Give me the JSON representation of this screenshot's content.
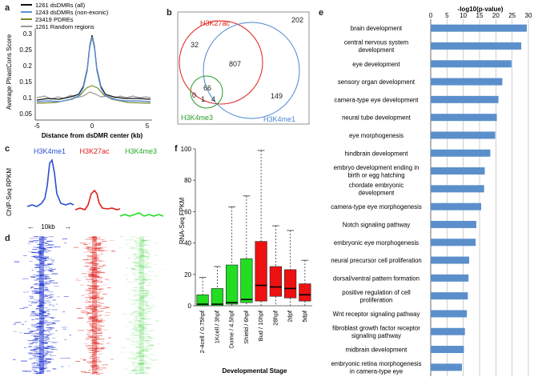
{
  "panel_letters": {
    "a": "a",
    "b": "b",
    "c": "c",
    "d": "d",
    "e": "e",
    "f": "f"
  },
  "panel_a": {
    "ylabel": "Average PhastCons Score",
    "xlabel": "Distance from dsDMR center (kb)",
    "yticks": [
      "0.3",
      "0.25",
      "0.2",
      "0.15",
      "0.1",
      "0.05"
    ],
    "xticks": [
      "-5",
      "0",
      "5"
    ],
    "legend": [
      "1261 dsDMRs (all)",
      "1243 dsDMRs (non-exonic)",
      "23419 PDREs",
      "1261 Random regions"
    ],
    "colors": [
      "#111111",
      "#5b8fd6",
      "#7a8a2a",
      "#9a9a9a"
    ]
  },
  "panel_b": {
    "labels": {
      "h3k27ac": "H3K27ac",
      "h3k4me1": "H3K4me1",
      "h3k4me3": "H3K4me3"
    },
    "counts": {
      "outside": "202",
      "k27ac_only": "32",
      "k27ac_k4me1": "807",
      "k4me1_only": "149",
      "all_three": "66",
      "k4me3_only": "0",
      "k4me3_k27ac": "1",
      "k4me3_k4me1": "4"
    },
    "colors": {
      "h3k27ac": "#e0201c",
      "h3k4me1": "#4a86d0",
      "h3k4me3": "#2a9a2a"
    }
  },
  "panel_c": {
    "ylabel": "ChIP-Seq RPKM",
    "tracks": [
      "H3K4me1",
      "H3K27ac",
      "H3K4me3"
    ],
    "colors": [
      "#2a4fd0",
      "#e0201c",
      "#22cc22"
    ],
    "scale_label": "10kb"
  },
  "chart_data": [
    {
      "type": "bar",
      "panel": "e",
      "title": "-log10(p-value)",
      "xlim": [
        0,
        30
      ],
      "xticks": [
        "0",
        "5",
        "10",
        "15",
        "20",
        "25",
        "30"
      ],
      "categories": [
        [
          "brain development"
        ],
        [
          "central nervous system",
          "development"
        ],
        [
          "eye development"
        ],
        [
          "sensory organ development"
        ],
        [
          "camera-type eye development"
        ],
        [
          "neural tube development"
        ],
        [
          "eye morphogenesis"
        ],
        [
          "hindbrain development"
        ],
        [
          "embryo development ending in",
          "birth or egg hatching"
        ],
        [
          "chordate embryonic",
          "development"
        ],
        [
          "camera-type eye morphogenesis"
        ],
        [
          "Notch signaling pathway"
        ],
        [
          "embryonic eye morphogenesis"
        ],
        [
          "neural precursor cell proliferation"
        ],
        [
          "dorsal/ventral pattern formation"
        ],
        [
          "positive regulation of cell",
          "proliferation"
        ],
        [
          "Wnt receptor signaling pathway"
        ],
        [
          "fibroblast growth factor receptor",
          "signaling pathway"
        ],
        [
          "midbrain development"
        ],
        [
          "embryonic retina morphogenesis",
          "in camera-type eye"
        ]
      ],
      "values": [
        29.5,
        27.8,
        24.8,
        22.0,
        20.8,
        20.3,
        19.8,
        18.3,
        16.6,
        16.4,
        15.5,
        14.0,
        13.8,
        11.8,
        11.6,
        11.4,
        11.1,
        10.5,
        10.2,
        9.6
      ],
      "color": "#5b8fcc"
    },
    {
      "type": "box",
      "panel": "f",
      "ylabel": "RNA-Seq FPKM",
      "xlabel": "Developmental Stage",
      "ylim": [
        0,
        100
      ],
      "yticks": [
        "100",
        "80",
        "60",
        "40",
        "20",
        "0"
      ],
      "categories": [
        "2-4cell / 0.75hpf",
        "1Kcell / 3hpf",
        "Dome / 4.5hpf",
        "Shield / 6hpf",
        "Bud / 10hpf",
        "28hpf",
        "2dpf",
        "5dpf"
      ],
      "boxes": [
        {
          "min": 0,
          "q1": 0,
          "median": 1,
          "q3": 7,
          "max": 18,
          "color": "#22dd22"
        },
        {
          "min": 0,
          "q1": 0,
          "median": 1,
          "q3": 11,
          "max": 25,
          "color": "#22dd22"
        },
        {
          "min": 0,
          "q1": 1,
          "median": 2,
          "q3": 26,
          "max": 63,
          "color": "#22dd22"
        },
        {
          "min": 0,
          "q1": 2,
          "median": 4,
          "q3": 30,
          "max": 70,
          "color": "#22dd22"
        },
        {
          "min": 0,
          "q1": 3,
          "median": 13,
          "q3": 41,
          "max": 99,
          "color": "#ee1111"
        },
        {
          "min": 0,
          "q1": 6,
          "median": 12,
          "q3": 25,
          "max": 51,
          "color": "#ee1111"
        },
        {
          "min": 0,
          "q1": 5,
          "median": 11,
          "q3": 23,
          "max": 48,
          "color": "#ee1111"
        },
        {
          "min": 0,
          "q1": 3,
          "median": 7,
          "q3": 14,
          "max": 29,
          "color": "#ee1111"
        }
      ]
    }
  ]
}
